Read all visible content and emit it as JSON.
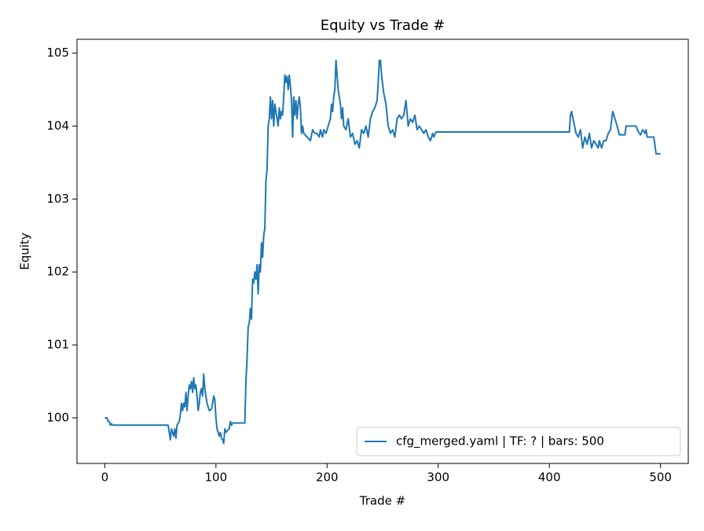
{
  "chart_data": {
    "type": "line",
    "title": "Equity vs Trade #",
    "xlabel": "Trade #",
    "ylabel": "Equity",
    "x": [
      0,
      2,
      3,
      4,
      5,
      6,
      7,
      10,
      57,
      58,
      59,
      60,
      62,
      63,
      64,
      65,
      67,
      68,
      69,
      70,
      71,
      72,
      73,
      74,
      75,
      76,
      77,
      78,
      79,
      80,
      81,
      82,
      83,
      84,
      85,
      86,
      87,
      88,
      89,
      90,
      92,
      94,
      96,
      97,
      98,
      99,
      100,
      101,
      102,
      103,
      104,
      105,
      106,
      107,
      108,
      109,
      110,
      112,
      113,
      114,
      115,
      126,
      127,
      128,
      129,
      130,
      131,
      132,
      133,
      134,
      135,
      136,
      137,
      138,
      139,
      140,
      141,
      142,
      143,
      144,
      145,
      146,
      147,
      148,
      149,
      150,
      151,
      152,
      153,
      154,
      155,
      156,
      157,
      158,
      159,
      160,
      161,
      162,
      163,
      164,
      165,
      166,
      167,
      168,
      169,
      170,
      171,
      172,
      173,
      174,
      175,
      176,
      177,
      178,
      179,
      182,
      185,
      187,
      189,
      191,
      193,
      194,
      196,
      197,
      199,
      201,
      203,
      204,
      205,
      206,
      207,
      208,
      209,
      210,
      211,
      212,
      213,
      214,
      215,
      217,
      219,
      221,
      223,
      225,
      227,
      229,
      231,
      233,
      235,
      237,
      239,
      241,
      243,
      245,
      246,
      247,
      248,
      249,
      251,
      253,
      255,
      257,
      259,
      261,
      263,
      265,
      267,
      269,
      271,
      273,
      275,
      277,
      279,
      281,
      283,
      285,
      287,
      289,
      291,
      293,
      295,
      296,
      298,
      418,
      419,
      420,
      422,
      424,
      426,
      428,
      430,
      432,
      434,
      436,
      438,
      440,
      442,
      444,
      445,
      447,
      449,
      451,
      453,
      455,
      457,
      459,
      461,
      463,
      468,
      469,
      478,
      480,
      482,
      484,
      486,
      487,
      488,
      494,
      496,
      500
    ],
    "series": [
      {
        "name": "cfg_merged.yaml | TF: ? | bars: 500",
        "color": "#1f77b4",
        "values": [
          100.0,
          100.0,
          99.95,
          99.95,
          99.9,
          99.92,
          99.9,
          99.9,
          99.9,
          99.8,
          99.7,
          99.85,
          99.75,
          99.85,
          99.72,
          99.9,
          99.95,
          100.05,
          100.2,
          100.1,
          100.2,
          100.15,
          100.35,
          100.1,
          100.3,
          100.45,
          100.4,
          100.5,
          100.35,
          100.55,
          100.4,
          100.45,
          100.3,
          100.1,
          100.2,
          100.35,
          100.4,
          100.3,
          100.6,
          100.4,
          100.2,
          100.1,
          100.12,
          100.2,
          100.3,
          100.25,
          100.0,
          99.85,
          99.8,
          99.75,
          99.8,
          99.72,
          99.7,
          99.65,
          99.85,
          99.8,
          99.82,
          99.85,
          99.95,
          99.9,
          99.93,
          99.93,
          100.5,
          100.8,
          101.25,
          101.3,
          101.5,
          101.35,
          101.9,
          101.85,
          102.0,
          101.9,
          102.1,
          101.7,
          102.1,
          102.0,
          102.4,
          102.2,
          102.5,
          102.6,
          103.25,
          103.4,
          104.0,
          104.1,
          104.4,
          104.1,
          104.35,
          104.0,
          104.3,
          104.2,
          104.1,
          104.0,
          104.25,
          104.1,
          104.2,
          104.15,
          104.4,
          104.7,
          104.6,
          104.68,
          104.5,
          104.7,
          104.55,
          104.35,
          103.85,
          104.4,
          104.15,
          104.35,
          104.1,
          104.3,
          104.4,
          104.25,
          103.9,
          104.0,
          103.9,
          103.85,
          103.8,
          103.95,
          103.9,
          103.9,
          103.85,
          103.95,
          103.85,
          103.95,
          103.9,
          104.0,
          104.1,
          104.3,
          104.2,
          104.4,
          104.5,
          104.9,
          104.7,
          104.5,
          104.4,
          104.3,
          104.1,
          104.25,
          104.0,
          103.95,
          104.1,
          103.85,
          103.9,
          103.75,
          103.8,
          103.7,
          103.95,
          103.9,
          104.0,
          103.85,
          104.1,
          104.2,
          104.25,
          104.35,
          104.6,
          104.9,
          104.9,
          104.7,
          104.45,
          104.3,
          104.0,
          103.9,
          103.95,
          103.85,
          104.1,
          104.15,
          104.1,
          104.15,
          104.35,
          104.0,
          104.1,
          104.05,
          104.15,
          103.95,
          104.0,
          103.95,
          103.9,
          103.95,
          103.85,
          103.8,
          103.9,
          103.85,
          103.92,
          103.92,
          104.15,
          104.2,
          104.05,
          103.9,
          103.85,
          103.95,
          103.7,
          103.85,
          103.75,
          103.9,
          103.7,
          103.8,
          103.75,
          103.7,
          103.8,
          103.7,
          103.8,
          103.8,
          103.9,
          103.95,
          104.2,
          104.1,
          104.0,
          103.88,
          103.88,
          104.0,
          104.0,
          103.92,
          103.88,
          103.95,
          103.9,
          103.95,
          103.85,
          103.85,
          103.62,
          103.62
        ]
      }
    ],
    "xlim": [
      -25,
      525
    ],
    "ylim": [
      99.375,
      105.19
    ],
    "xticks": [
      0,
      100,
      200,
      300,
      400,
      500
    ],
    "yticks": [
      100,
      101,
      102,
      103,
      104,
      105
    ],
    "legend": "lower right"
  }
}
